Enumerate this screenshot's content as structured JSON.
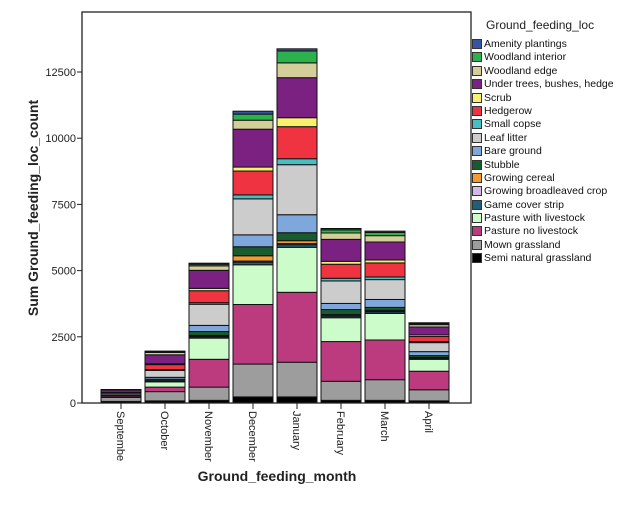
{
  "chart_data": {
    "type": "bar",
    "stacked": true,
    "xlabel": "Ground_feeding_month",
    "ylabel": "Sum Ground_feeding_loc_count",
    "ylim": [
      0,
      14750
    ],
    "yticks": [
      0,
      2500,
      5000,
      7500,
      10000,
      12500
    ],
    "ytick_labels": [
      "0",
      "2500",
      "5000",
      "7500",
      "10000",
      "12500"
    ],
    "grid": false,
    "legend_title": "Ground_feeding_loc",
    "legend_position": "right",
    "categories": [
      "Septembe",
      "October",
      "November",
      "December",
      "January",
      "February",
      "March",
      "April"
    ],
    "series": [
      {
        "name": "Amenity plantings",
        "color": "#3953a4",
        "values": [
          0,
          20,
          40,
          110,
          80,
          50,
          50,
          30
        ]
      },
      {
        "name": "Woodland interior",
        "color": "#2bb24c",
        "values": [
          0,
          30,
          60,
          230,
          450,
          120,
          120,
          40
        ]
      },
      {
        "name": "Woodland edge",
        "color": "#d4cf9a",
        "values": [
          10,
          90,
          170,
          340,
          560,
          240,
          240,
          90
        ]
      },
      {
        "name": "Under trees, bushes, hedge",
        "color": "#7a2182",
        "values": [
          100,
          340,
          680,
          1430,
          1510,
          830,
          680,
          300
        ]
      },
      {
        "name": "Scrub",
        "color": "#f8f06e",
        "values": [
          0,
          30,
          90,
          150,
          340,
          110,
          110,
          60
        ]
      },
      {
        "name": "Hedgerow",
        "color": "#ef3340",
        "values": [
          30,
          190,
          450,
          900,
          1210,
          530,
          530,
          190
        ]
      },
      {
        "name": "Small copse",
        "color": "#45bfc4",
        "values": [
          0,
          30,
          60,
          150,
          225,
          100,
          100,
          40
        ]
      },
      {
        "name": "Leaf litter",
        "color": "#cccccc",
        "values": [
          60,
          260,
          800,
          1360,
          1890,
          850,
          750,
          340
        ]
      },
      {
        "name": "Bare ground",
        "color": "#7ea7dc",
        "values": [
          0,
          70,
          230,
          450,
          680,
          230,
          300,
          150
        ]
      },
      {
        "name": "Stubble",
        "color": "#195b2e",
        "values": [
          10,
          60,
          150,
          340,
          300,
          190,
          110,
          70
        ]
      },
      {
        "name": "Growing cereal",
        "color": "#f39b30",
        "values": [
          0,
          10,
          30,
          200,
          110,
          40,
          40,
          20
        ]
      },
      {
        "name": "Growing broadleaved crop",
        "color": "#d6b8e8",
        "values": [
          0,
          10,
          20,
          40,
          40,
          20,
          20,
          10
        ]
      },
      {
        "name": "Game cover strip",
        "color": "#1f5f7a",
        "values": [
          0,
          20,
          50,
          100,
          100,
          60,
          60,
          40
        ]
      },
      {
        "name": "Pasture with livestock",
        "color": "#cdfccb",
        "values": [
          40,
          200,
          800,
          1500,
          1700,
          900,
          1000,
          450
        ]
      },
      {
        "name": "Pasture no livestock",
        "color": "#bc3b7f",
        "values": [
          50,
          170,
          1050,
          2250,
          2640,
          1500,
          1500,
          700
        ]
      },
      {
        "name": "Mown grassland",
        "color": "#9d9d9d",
        "values": [
          150,
          350,
          500,
          1240,
          1310,
          720,
          780,
          420
        ]
      },
      {
        "name": "Semi natural grassland",
        "color": "#000000",
        "values": [
          60,
          80,
          100,
          230,
          230,
          100,
          100,
          80
        ]
      }
    ]
  }
}
